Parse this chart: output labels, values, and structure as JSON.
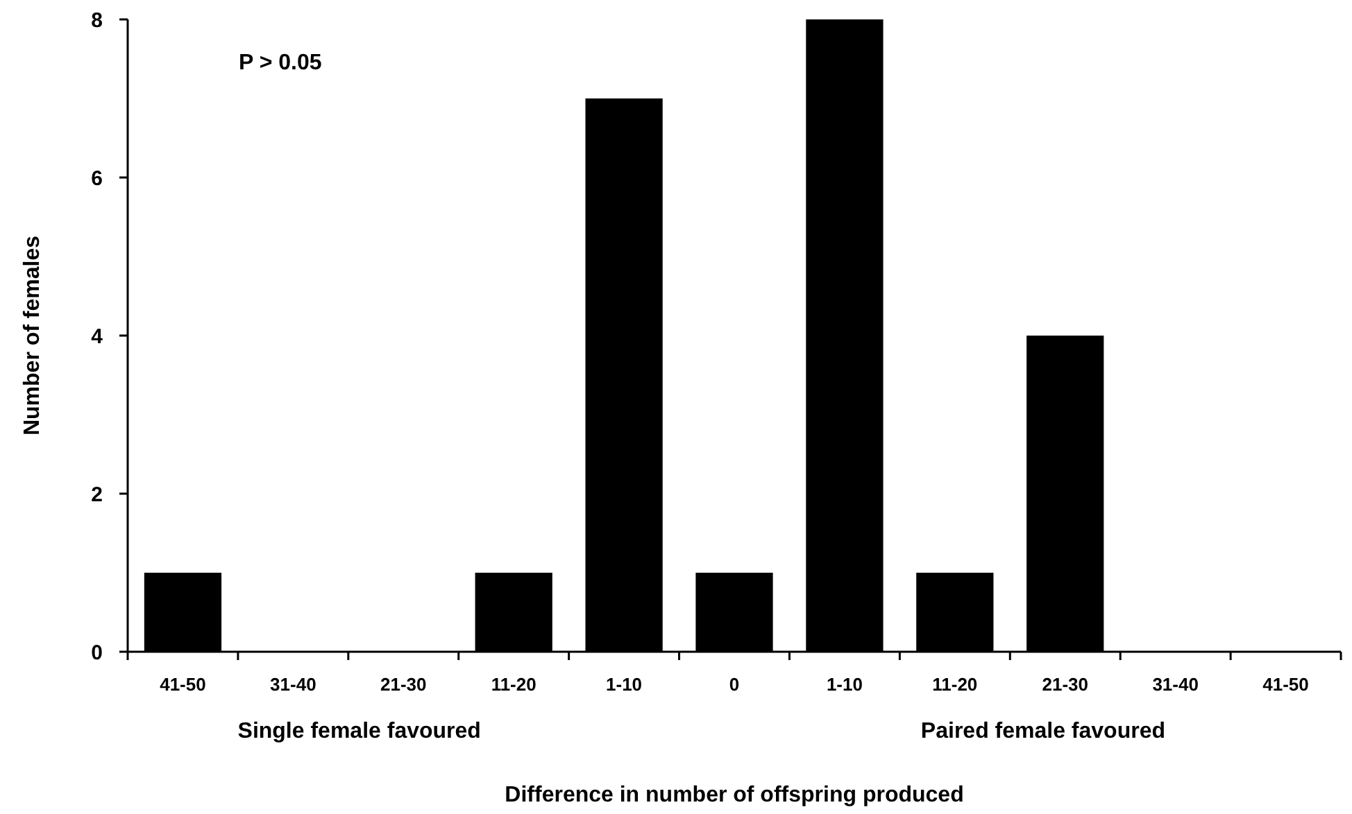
{
  "chart_data": {
    "type": "bar",
    "xlabel": "Difference in number of offspring produced",
    "ylabel": "Number of females",
    "categories": [
      "41-50",
      "31-40",
      "21-30",
      "11-20",
      "1-10",
      "0",
      "1-10",
      "11-20",
      "21-30",
      "31-40",
      "41-50"
    ],
    "values": [
      1,
      0,
      0,
      1,
      7,
      1,
      8,
      1,
      4,
      0,
      0
    ],
    "color": "#000000",
    "ylim": [
      0,
      8
    ],
    "yticks": [
      0,
      2,
      4,
      6,
      8
    ],
    "grid": false,
    "annotations": [
      "P > 0.05",
      "Single female favoured",
      "Paired female favoured"
    ]
  }
}
